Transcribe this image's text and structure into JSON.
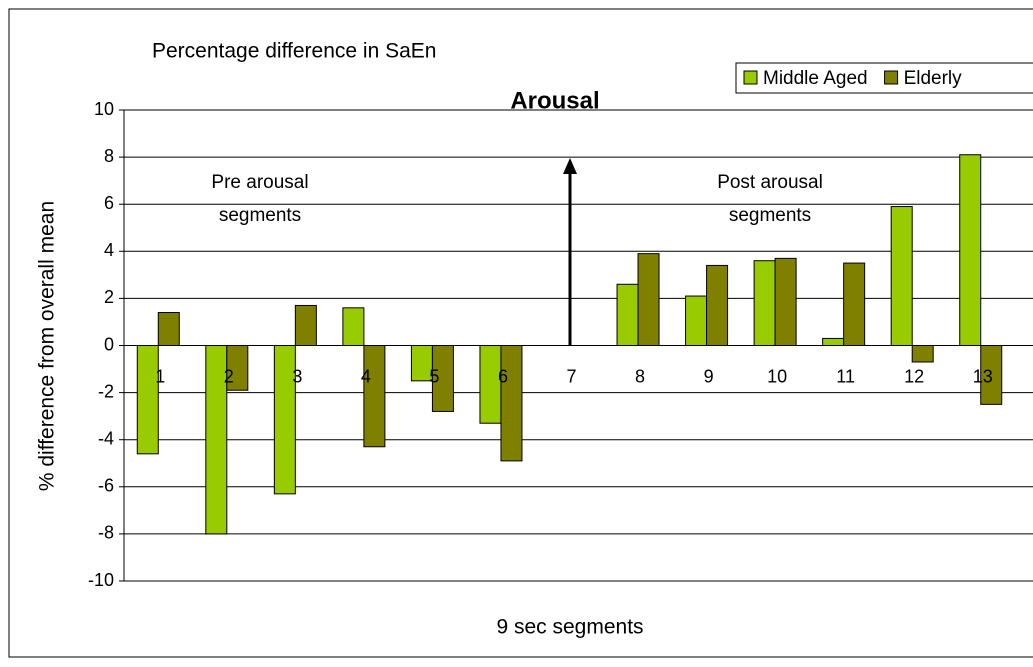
{
  "chart_data": {
    "type": "bar",
    "title": "Percentage difference in SaEn",
    "x_label": "9 sec segments",
    "y_label": "% difference from overall mean",
    "annotations": {
      "arousal": "Arousal",
      "pre": [
        "Pre arousal",
        "segments"
      ],
      "post": [
        "Post arousal",
        "segments"
      ]
    },
    "categories": [
      "1",
      "2",
      "3",
      "4",
      "5",
      "6",
      "7",
      "8",
      "9",
      "10",
      "11",
      "12",
      "13"
    ],
    "series": [
      {
        "name": "Middle Aged",
        "color": "#99cc00",
        "values": [
          -4.6,
          -8.0,
          -6.3,
          1.6,
          -1.5,
          -3.3,
          null,
          2.6,
          2.1,
          3.6,
          0.3,
          5.9,
          8.1
        ]
      },
      {
        "name": "Elderly",
        "color": "#808000",
        "values": [
          1.4,
          -1.9,
          1.7,
          -4.3,
          -2.8,
          -4.9,
          null,
          3.9,
          3.4,
          3.7,
          3.5,
          -0.7,
          -2.5
        ]
      }
    ],
    "ylim": [
      -10,
      10
    ],
    "yticks": [
      -10,
      -8,
      -6,
      -4,
      -2,
      0,
      2,
      4,
      6,
      8,
      10
    ],
    "grid": true
  }
}
